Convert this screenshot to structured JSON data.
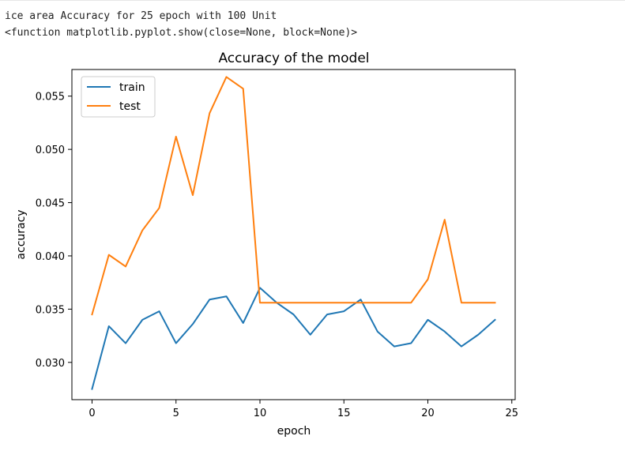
{
  "output": {
    "line1": "ice area Accuracy for 25 epoch with 100 Unit",
    "line2": "<function matplotlib.pyplot.show(close=None, block=None)>"
  },
  "chart_data": {
    "type": "line",
    "title": "Accuracy of the model",
    "xlabel": "epoch",
    "ylabel": "accuracy",
    "xlim": [
      -1.2,
      25.2
    ],
    "ylim": [
      0.0265,
      0.0575
    ],
    "xticks": [
      0,
      5,
      10,
      15,
      20,
      25
    ],
    "yticks": [
      0.03,
      0.035,
      0.04,
      0.045,
      0.05,
      0.055
    ],
    "ytick_labels": [
      "0.030",
      "0.035",
      "0.040",
      "0.045",
      "0.050",
      "0.055"
    ],
    "legend_position": "upper-left",
    "x": [
      0,
      1,
      2,
      3,
      4,
      5,
      6,
      7,
      8,
      9,
      10,
      11,
      12,
      13,
      14,
      15,
      16,
      17,
      18,
      19,
      20,
      21,
      22,
      23,
      24
    ],
    "series": [
      {
        "name": "train",
        "color": "#1f77b4",
        "values": [
          0.0275,
          0.0334,
          0.0318,
          0.034,
          0.0348,
          0.0318,
          0.0336,
          0.0359,
          0.0362,
          0.0337,
          0.037,
          0.0356,
          0.0345,
          0.0326,
          0.0345,
          0.0348,
          0.0359,
          0.0329,
          0.0315,
          0.0318,
          0.034,
          0.0329,
          0.0315,
          0.0326,
          0.034
        ]
      },
      {
        "name": "test",
        "color": "#ff7f0e",
        "values": [
          0.0345,
          0.0401,
          0.039,
          0.0424,
          0.0445,
          0.0512,
          0.0457,
          0.0534,
          0.0568,
          0.0557,
          0.0356,
          0.0356,
          0.0356,
          0.0356,
          0.0356,
          0.0356,
          0.0356,
          0.0356,
          0.0356,
          0.0356,
          0.0378,
          0.0434,
          0.0356,
          0.0356,
          0.0356
        ]
      }
    ]
  }
}
